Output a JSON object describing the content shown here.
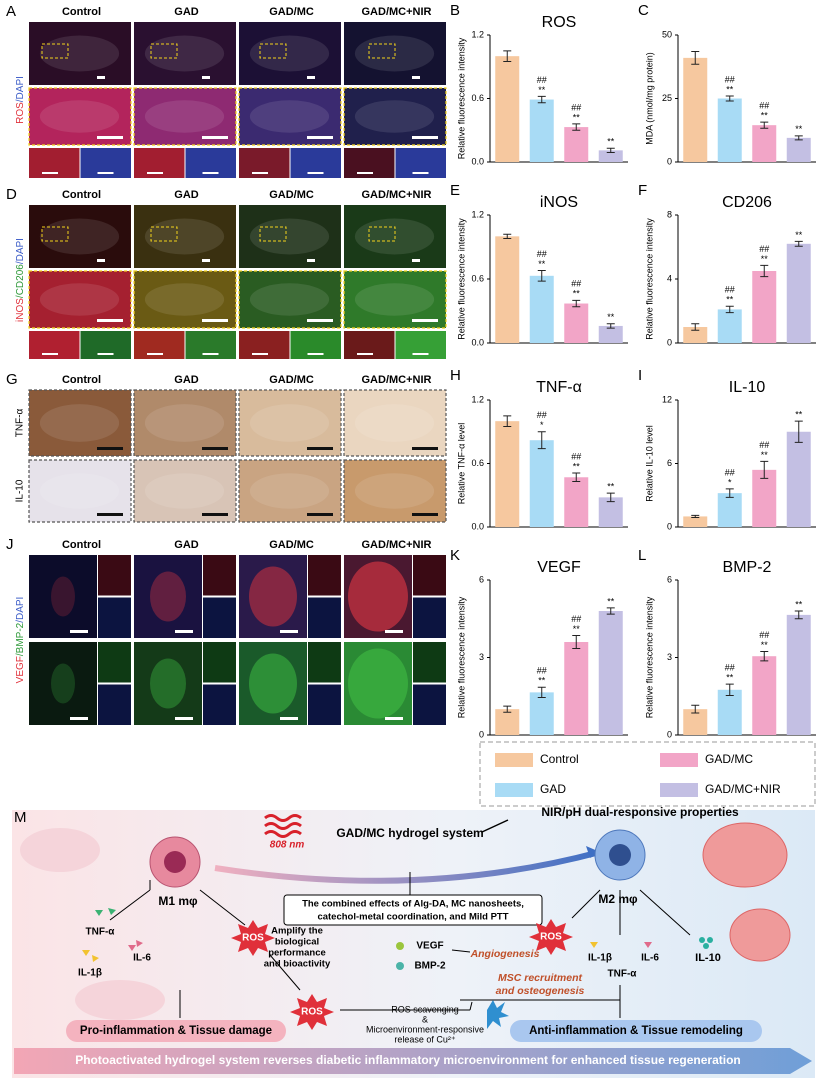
{
  "chart_data": [
    {
      "type": "bar",
      "letter": "B",
      "title": "ROS",
      "ylabel": "Relative fluorescence intensity",
      "values": [
        1.0,
        0.59,
        0.33,
        0.11
      ],
      "errors": [
        0.05,
        0.03,
        0.03,
        0.02
      ],
      "annotations": [
        [],
        [
          "##",
          "**"
        ],
        [
          "##",
          "**"
        ],
        [
          "**"
        ]
      ],
      "ylim": [
        0,
        1.2
      ],
      "yticks": [
        {
          "value": 0,
          "label": "0.0"
        },
        0.6,
        1.2
      ]
    },
    {
      "type": "bar",
      "letter": "C",
      "ylabel": "MDA (nmol/mg protein)",
      "values": [
        41,
        25,
        14.5,
        9.5
      ],
      "errors": [
        2.5,
        1,
        1.2,
        0.8
      ],
      "annotations": [
        [],
        [
          "##",
          "**"
        ],
        [
          "##",
          "**"
        ],
        [
          "**"
        ]
      ],
      "ylim": [
        0,
        50
      ],
      "yticks": [
        0,
        25,
        50
      ]
    },
    {
      "type": "bar",
      "letter": "E",
      "title": "iNOS",
      "ylabel": "Relative fluorescence intensity",
      "values": [
        1.0,
        0.63,
        0.37,
        0.16
      ],
      "errors": [
        0.02,
        0.05,
        0.03,
        0.02
      ],
      "annotations": [
        [],
        [
          "##",
          "**"
        ],
        [
          "##",
          "**"
        ],
        [
          "**"
        ]
      ],
      "ylim": [
        0,
        1.2
      ],
      "yticks": [
        {
          "value": 0,
          "label": "0.0"
        },
        0.6,
        1.2
      ]
    },
    {
      "type": "bar",
      "letter": "F",
      "title": "CD206",
      "ylabel": "Relative fluorescence intensity",
      "values": [
        1.0,
        2.1,
        4.5,
        6.2
      ],
      "errors": [
        0.2,
        0.2,
        0.35,
        0.15
      ],
      "annotations": [
        [],
        [
          "##",
          "**"
        ],
        [
          "##",
          "**"
        ],
        [
          "**"
        ]
      ],
      "ylim": [
        0,
        8
      ],
      "yticks": [
        0,
        4,
        8
      ]
    },
    {
      "type": "bar",
      "letter": "H",
      "title": "TNF-α",
      "ylabel": "Relative TNF-α level",
      "values": [
        1.0,
        0.82,
        0.47,
        0.28
      ],
      "errors": [
        0.05,
        0.08,
        0.04,
        0.04
      ],
      "annotations": [
        [],
        [
          "##",
          "*"
        ],
        [
          "##",
          "**"
        ],
        [
          "**"
        ]
      ],
      "ylim": [
        0,
        1.2
      ],
      "yticks": [
        {
          "value": 0,
          "label": "0.0"
        },
        0.6,
        1.2
      ]
    },
    {
      "type": "bar",
      "letter": "I",
      "title": "IL-10",
      "ylabel": "Relative IL-10 level",
      "values": [
        1.0,
        3.2,
        5.4,
        9.0
      ],
      "errors": [
        0.1,
        0.4,
        0.8,
        1.0
      ],
      "annotations": [
        [],
        [
          "##",
          "*"
        ],
        [
          "##",
          "**"
        ],
        [
          "**"
        ]
      ],
      "ylim": [
        0,
        12
      ],
      "yticks": [
        0,
        6,
        12
      ]
    },
    {
      "type": "bar",
      "letter": "K",
      "title": "VEGF",
      "ylabel": "Relative fluorescence intensity",
      "values": [
        1.0,
        1.65,
        3.6,
        4.8
      ],
      "errors": [
        0.12,
        0.2,
        0.25,
        0.12
      ],
      "annotations": [
        [],
        [
          "##",
          "**"
        ],
        [
          "##",
          "**"
        ],
        [
          "**"
        ]
      ],
      "ylim": [
        0,
        6
      ],
      "yticks": [
        0,
        3,
        6
      ]
    },
    {
      "type": "bar",
      "letter": "L",
      "title": "BMP-2",
      "ylabel": "Relative fluorescence intensity",
      "values": [
        1.0,
        1.75,
        3.05,
        4.65
      ],
      "errors": [
        0.15,
        0.22,
        0.18,
        0.15
      ],
      "annotations": [
        [],
        [
          "##",
          "**"
        ],
        [
          "##",
          "**"
        ],
        [
          "**"
        ]
      ],
      "ylim": [
        0,
        6
      ],
      "yticks": [
        0,
        3,
        6
      ]
    }
  ],
  "legend": {
    "items": [
      {
        "name": "Control",
        "color": "#f6c89f"
      },
      {
        "name": "GAD",
        "color": "#a8dbf5"
      },
      {
        "name": "GAD/MC",
        "color": "#f2a5c7"
      },
      {
        "name": "GAD/MC+NIR",
        "color": "#c3bfe3"
      }
    ]
  },
  "image_panels": [
    {
      "letter": "A",
      "columns": [
        "Control",
        "GAD",
        "GAD/MC",
        "GAD/MC+NIR"
      ],
      "stain": [
        {
          "text": "ROS",
          "color": "#e0303a"
        },
        {
          "text": "/DAPI",
          "color": "#3a5bc7"
        }
      ]
    },
    {
      "letter": "D",
      "columns": [
        "Control",
        "GAD",
        "GAD/MC",
        "GAD/MC+NIR"
      ],
      "stain": [
        {
          "text": "iNOS",
          "color": "#e0303a"
        },
        {
          "text": "/CD206",
          "color": "#2f9a3a"
        },
        {
          "text": "/DAPI",
          "color": "#3a5bc7"
        }
      ]
    },
    {
      "letter": "G",
      "columns": [
        "Control",
        "GAD",
        "GAD/MC",
        "GAD/MC+NIR"
      ],
      "rows": [
        "TNF-α",
        "IL-10"
      ]
    },
    {
      "letter": "J",
      "columns": [
        "Control",
        "GAD",
        "GAD/MC",
        "GAD/MC+NIR"
      ],
      "stain": [
        {
          "text": "VEGF",
          "color": "#e0303a"
        },
        {
          "text": "/BMP-2",
          "color": "#2f9a3a"
        },
        {
          "text": "/DAPI",
          "color": "#3a5bc7"
        }
      ]
    }
  ],
  "diagram": {
    "letter": "M",
    "laser": "808 nm",
    "system": "GAD/MC hydrogel system",
    "property": "NIR/pH dual-responsive properties",
    "m1": "M1 mφ",
    "m2": "M2 mφ",
    "combined": [
      "The combined effects of Alg-DA, MC nanosheets,",
      "catechol-metal coordination, and Mild PTT"
    ],
    "amplify": [
      "Amplify the",
      "biological",
      "performance",
      "and bioactivity"
    ],
    "left_cytokines": [
      "TNF-α",
      "IL-6",
      "IL-1β"
    ],
    "ros": [
      "ROS",
      "ROS",
      "ROS"
    ],
    "growth_factors": [
      "VEGF",
      "BMP-2"
    ],
    "angiogenesis": "Angiogenesis",
    "osteogenesis": [
      "MSC recruitment",
      "and osteogenesis"
    ],
    "right_cytokines": [
      "IL-1β",
      "IL-6",
      "TNF-α",
      "IL-10"
    ],
    "scavenging": [
      "ROS scavenging",
      "&",
      "Microenvironment-responsive",
      "release of Cu²⁺"
    ],
    "pro": "Pro-inflammation & Tissue damage",
    "anti": "Anti-inflammation & Tissue remodeling",
    "banner": "Photoactivated hydrogel system reverses diabetic inflammatory microenvironment for enhanced tissue regeneration"
  }
}
